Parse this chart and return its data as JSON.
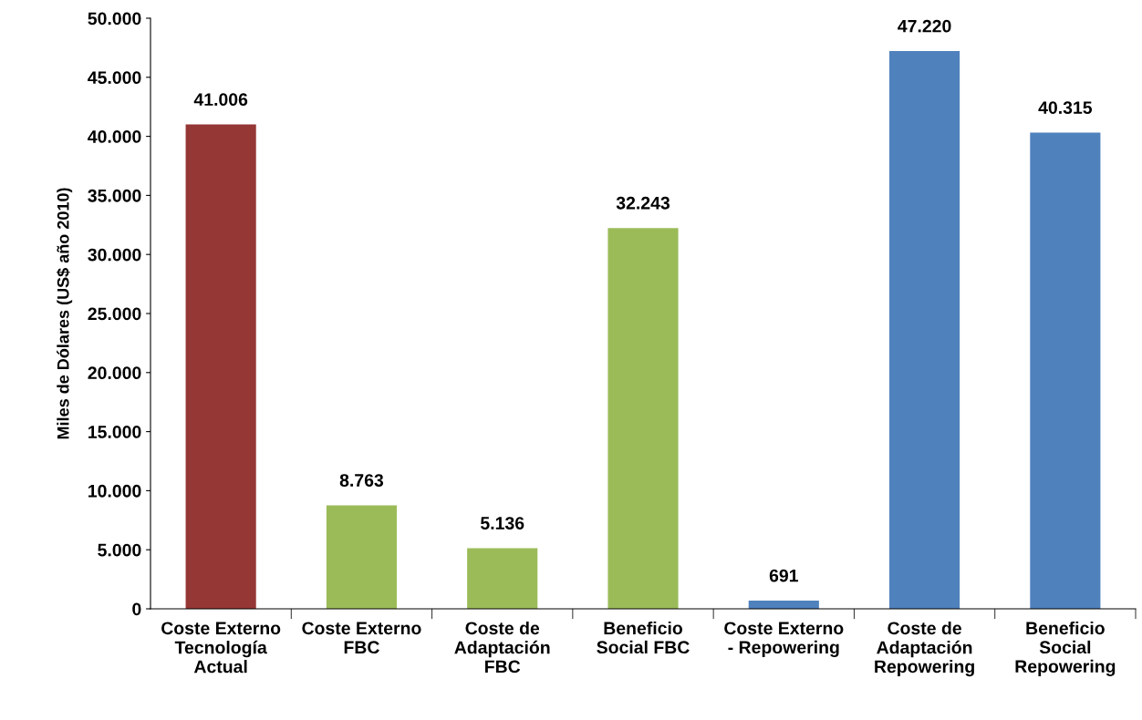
{
  "chart_data": {
    "type": "bar",
    "ylabel": "Miles de Dólares (US$ año 2010)",
    "categories": [
      "Coste Externo\nTecnología\nActual",
      "Coste Externo\nFBC",
      "Coste de\nAdaptación\nFBC",
      "Beneficio\nSocial FBC",
      "Coste Externo\n- Repowering",
      "Coste de\nAdaptación\nRepowering",
      "Beneficio\nSocial\nRepowering"
    ],
    "values": [
      41006,
      8763,
      5136,
      32243,
      691,
      47220,
      40315
    ],
    "colors": [
      "#953735",
      "#9bbb59",
      "#9bbb59",
      "#9bbb59",
      "#4f81bd",
      "#4f81bd",
      "#4f81bd"
    ],
    "value_labels": [
      "41.006",
      "8.763",
      "5.136",
      "32.243",
      "691",
      "47.220",
      "40.315"
    ],
    "ylim": [
      0,
      50000
    ],
    "yticks": [
      0,
      {
        "value": 5000,
        "label": "5.000"
      },
      {
        "value": 10000,
        "label": "10.000"
      },
      {
        "value": 15000,
        "label": "15.000"
      },
      {
        "value": 20000,
        "label": "20.000"
      },
      {
        "value": 25000,
        "label": "25.000"
      },
      {
        "value": 30000,
        "label": "30.000"
      },
      {
        "value": 35000,
        "label": "35.000"
      },
      {
        "value": 40000,
        "label": "40.000"
      },
      {
        "value": 45000,
        "label": "45.000"
      },
      {
        "value": 50000,
        "label": "50.000"
      }
    ],
    "grid": false
  }
}
